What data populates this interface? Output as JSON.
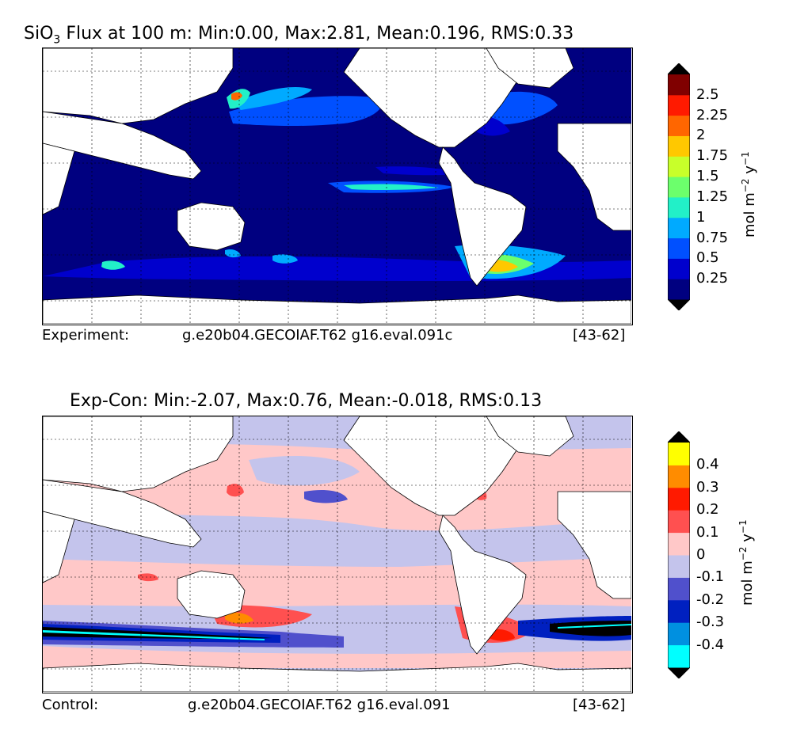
{
  "top": {
    "title_prefix": "SiO",
    "title_sub": "3",
    "title_rest": " Flux at 100 m: Min:0.00, Max:2.81, Mean:0.196, RMS:0.33",
    "footer_label": "Experiment:",
    "footer_case": "g.e20b04.GECOIAF.T62 g16.eval.091c",
    "footer_years": "[43-62]",
    "colorbar": {
      "unit_main": "mol m",
      "unit_exp1": "−2",
      "unit_mid": " y",
      "unit_exp2": "−1",
      "ticks": [
        "2.5",
        "2.25",
        "2",
        "1.75",
        "1.5",
        "1.25",
        "1",
        "0.75",
        "0.5",
        "0.25"
      ],
      "colors": [
        "#000080",
        "#0000cd",
        "#0050ff",
        "#00aaff",
        "#22f0c8",
        "#6cff6c",
        "#c8ff2a",
        "#ffc800",
        "#ff6600",
        "#ff1a00",
        "#800000"
      ],
      "under_color": "#000000",
      "over_color": "#000000"
    }
  },
  "bottom": {
    "title": "Exp-Con: Min:-2.07, Max:0.76, Mean:-0.018, RMS:0.13",
    "footer_label": "Control:",
    "footer_case": "g.e20b04.GECOIAF.T62 g16.eval.091",
    "footer_years": "[43-62]",
    "colorbar": {
      "unit_main": "mol m",
      "unit_exp1": "−2",
      "unit_mid": " y",
      "unit_exp2": "−1",
      "ticks": [
        "0.4",
        "0.3",
        "0.2",
        "0.1",
        "0",
        "-0.1",
        "-0.2",
        "-0.3",
        "-0.4"
      ],
      "colors": [
        "#00ffff",
        "#0090e0",
        "#0020c0",
        "#5050cc",
        "#c4c4ec",
        "#ffc8c8",
        "#ff5050",
        "#ff1a00",
        "#ff8c00",
        "#ffff00"
      ],
      "under_color": "#000000",
      "over_color": "#000000"
    }
  }
}
